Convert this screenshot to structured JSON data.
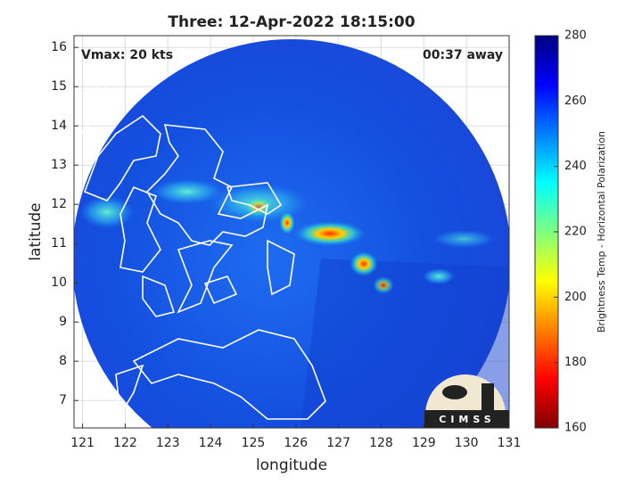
{
  "chart_data": {
    "type": "map",
    "title": "Three: 12-Apr-2022 18:15:00",
    "annotations": [
      "Vmax: 20 kts",
      "00:37 away"
    ],
    "x_label": "longitude",
    "y_label": "latitude",
    "xlim": [
      120.8,
      131
    ],
    "xticks": [
      121,
      122,
      123,
      124,
      125,
      126,
      127,
      128,
      129,
      130,
      131
    ],
    "ylim": [
      6.3,
      16.3
    ],
    "yticks": [
      7,
      8,
      9,
      10,
      11,
      12,
      13,
      14,
      15,
      16
    ],
    "grid": true,
    "colorbar": {
      "label": "Brightness Temp - Horizontal Polarization",
      "lim": [
        160,
        280
      ],
      "ticks": [
        160,
        180,
        200,
        220,
        240,
        260,
        280
      ]
    },
    "logo": "CIMSS"
  }
}
